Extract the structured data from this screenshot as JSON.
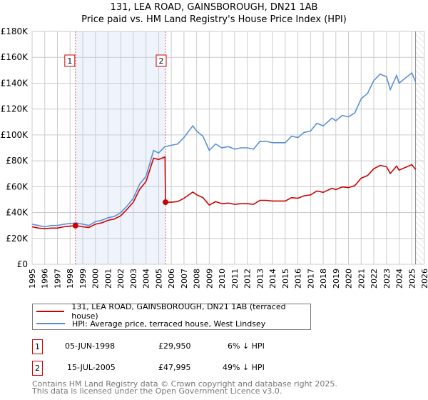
{
  "title": "131, LEA ROAD, GAINSBOROUGH, DN21 1AB",
  "subtitle": "Price paid vs. HM Land Registry's House Price Index (HPI)",
  "chart_data": {
    "type": "line",
    "title": "131, LEA ROAD, GAINSBOROUGH, DN21 1AB",
    "subtitle": "Price paid vs. HM Land Registry's House Price Index (HPI)",
    "xlim": [
      1995,
      2026
    ],
    "ylim": [
      0,
      180000
    ],
    "yticks": [
      0,
      20000,
      40000,
      60000,
      80000,
      100000,
      120000,
      140000,
      160000,
      180000
    ],
    "ytick_labels": [
      "£0",
      "£20K",
      "£40K",
      "£60K",
      "£80K",
      "£100K",
      "£120K",
      "£140K",
      "£160K",
      "£180K"
    ],
    "xticks": [
      "1995",
      "1996",
      "1997",
      "1998",
      "1999",
      "2000",
      "2001",
      "2002",
      "2003",
      "2004",
      "2005",
      "2006",
      "2007",
      "2008",
      "2009",
      "2010",
      "2011",
      "2012",
      "2013",
      "2014",
      "2015",
      "2016",
      "2017",
      "2018",
      "2019",
      "2020",
      "2021",
      "2022",
      "2023",
      "2024",
      "2025",
      "2026"
    ],
    "grid": true,
    "series": [
      {
        "name": "HPI: Average price, terraced house, West Lindsey",
        "color": "#5b8fd4",
        "x": [
          1995,
          1995.5,
          1996,
          1996.5,
          1997,
          1997.5,
          1998,
          1998.5,
          1999,
          1999.5,
          2000,
          2000.5,
          2001,
          2001.5,
          2002,
          2002.5,
          2003,
          2003.5,
          2004,
          2004.6,
          2005,
          2005.5,
          2006,
          2006.5,
          2007,
          2007.7,
          2008,
          2008.5,
          2009,
          2009.5,
          2010,
          2010.5,
          2011,
          2011.5,
          2012,
          2012.5,
          2013,
          2013.5,
          2014,
          2014.5,
          2015,
          2015.5,
          2016,
          2016.5,
          2017,
          2017.5,
          2018,
          2018.7,
          2019,
          2019.5,
          2020,
          2020.5,
          2021,
          2021.5,
          2022,
          2022.5,
          2023,
          2023.3,
          2023.8,
          2024,
          2024.5,
          2025,
          2025.3
        ],
        "y": [
          31000,
          30000,
          29000,
          30000,
          30000,
          31000,
          31500,
          32000,
          31000,
          30000,
          33000,
          34000,
          36000,
          37000,
          40000,
          45000,
          51000,
          62000,
          68000,
          88000,
          86000,
          91000,
          92000,
          93000,
          98000,
          107000,
          103000,
          99000,
          88000,
          93000,
          90000,
          91000,
          89000,
          90000,
          90000,
          89000,
          95000,
          95000,
          94000,
          94000,
          94000,
          99000,
          98000,
          102000,
          103000,
          109000,
          107000,
          113000,
          111000,
          115000,
          114000,
          117000,
          128000,
          132000,
          142000,
          147000,
          145000,
          135000,
          146000,
          140000,
          144000,
          148000,
          141000
        ]
      },
      {
        "name": "131, LEA ROAD, GAINSBOROUGH, DN21 1AB (terraced house)",
        "color": "#cc0000",
        "x": [
          1995,
          1995.5,
          1996,
          1996.5,
          1997,
          1997.5,
          1998,
          1998.43,
          1999,
          1999.5,
          2000,
          2000.5,
          2001,
          2001.5,
          2002,
          2002.5,
          2003,
          2003.5,
          2004,
          2004.6,
          2005,
          2005.5,
          2005.54,
          2006,
          2006.5,
          2007,
          2007.7,
          2008,
          2008.5,
          2009,
          2009.5,
          2010,
          2010.5,
          2011,
          2011.5,
          2012,
          2012.5,
          2013,
          2013.5,
          2014,
          2014.5,
          2015,
          2015.5,
          2016,
          2016.5,
          2017,
          2017.5,
          2018,
          2018.7,
          2019,
          2019.5,
          2020,
          2020.5,
          2021,
          2021.5,
          2022,
          2022.5,
          2023,
          2023.3,
          2023.8,
          2024,
          2024.5,
          2025,
          2025.3
        ],
        "y": [
          29000,
          28000,
          27500,
          28000,
          28000,
          29000,
          29500,
          29950,
          29000,
          28500,
          31000,
          32000,
          34000,
          35000,
          37500,
          42500,
          48000,
          58000,
          64000,
          82000,
          81000,
          83000,
          47995,
          48000,
          48500,
          51000,
          55800,
          53700,
          51500,
          45800,
          48400,
          46800,
          47300,
          46300,
          46800,
          46800,
          46300,
          49400,
          49400,
          48900,
          48900,
          48900,
          51500,
          51000,
          53000,
          53600,
          56700,
          55600,
          58800,
          57700,
          59800,
          59300,
          60800,
          66600,
          68600,
          73800,
          76400,
          75400,
          70200,
          75900,
          72800,
          74900,
          77000,
          73300
        ]
      }
    ],
    "annotations": [
      {
        "label": "1",
        "x": 1998.43,
        "y": 29950
      },
      {
        "label": "2",
        "x": 2005.54,
        "y": 47995
      }
    ],
    "shaded_range": [
      1998.43,
      2005.54
    ],
    "hatched_from": 2025.3
  },
  "legend": [
    {
      "label": "131, LEA ROAD, GAINSBOROUGH, DN21 1AB (terraced house)",
      "color": "#cc0000"
    },
    {
      "label": "HPI: Average price, terraced house, West Lindsey",
      "color": "#5b8fd4"
    }
  ],
  "transactions": [
    {
      "num": "1",
      "date": "05-JUN-1998",
      "price": "£29,950",
      "hpi": "6% ↓ HPI"
    },
    {
      "num": "2",
      "date": "15-JUL-2005",
      "price": "£47,995",
      "hpi": "49% ↓ HPI"
    }
  ],
  "footer": [
    "Contains HM Land Registry data © Crown copyright and database right 2025.",
    "This data is licensed under the Open Government Licence v3.0."
  ]
}
